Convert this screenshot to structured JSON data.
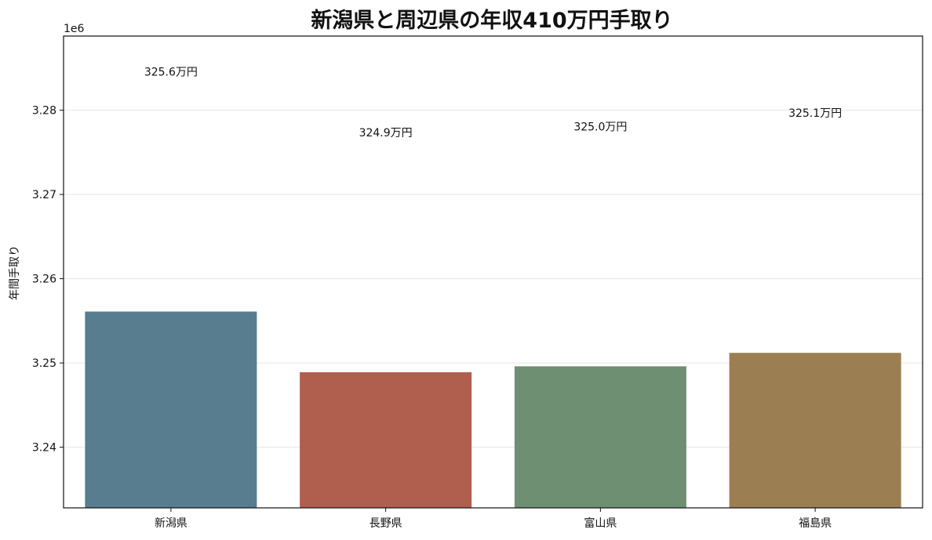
{
  "chart_data": {
    "type": "bar",
    "title": "新潟県と周辺県の年収410万円手取り",
    "xlabel": "",
    "ylabel": "年間手取り",
    "y_offset_label": "1e6",
    "categories": [
      "新潟県",
      "長野県",
      "富山県",
      "福島県"
    ],
    "values": [
      3256100,
      3248900,
      3249600,
      3251200
    ],
    "data_labels": [
      "325.6万円",
      "324.9万円",
      "325.0万円",
      "325.1万円"
    ],
    "colors": [
      "#577d8e",
      "#b05e4e",
      "#6f8f73",
      "#9b7f52"
    ],
    "ylim": [
      3232800,
      3288800
    ],
    "yticks": [
      3240000,
      3250000,
      3260000,
      3270000,
      3280000
    ],
    "ytick_labels": [
      "3.24",
      "3.25",
      "3.26",
      "3.27",
      "3.28"
    ],
    "grid": true
  }
}
